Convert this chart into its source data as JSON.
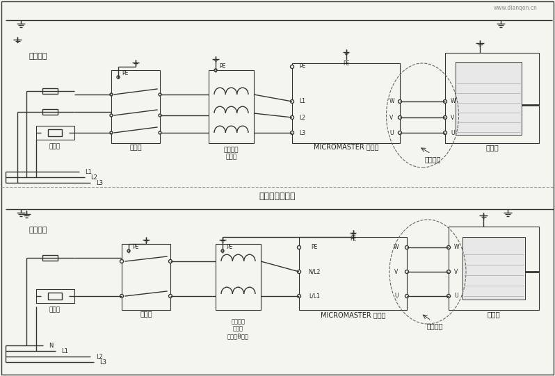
{
  "background": "#f5f5f0",
  "line_color": "#333333",
  "box_color": "#333333",
  "text_color": "#222222",
  "title": "典型的安装方法",
  "watermark": "www.dianqon.cn",
  "section1": {
    "label_power": "单相电源",
    "label_fuse": "熔断器",
    "label_contactor": "接触器",
    "label_filter": "可选件，\n滤波器\n（只限B级）",
    "label_inverter": "MICROMASTER 变频器",
    "label_shielded": "屏蔽电缆",
    "label_motor": "电动机",
    "lines_top": [
      "L3",
      "L2",
      "L1",
      "N"
    ],
    "terminals_in": [
      "L/L1",
      "N/L2",
      "PE"
    ],
    "terminals_out": [
      "U",
      "V",
      "W",
      "PE"
    ]
  },
  "section2": {
    "label_power": "三相电源",
    "label_fuse": "熔断器",
    "label_contactor": "接触器",
    "label_filter": "可选件，\n滤波器",
    "label_inverter": "MICROMASTER 变频器",
    "label_shielded": "屏蔽电缆",
    "label_motor": "电动机",
    "lines_top": [
      "L3",
      "L2",
      "L1"
    ],
    "terminals_in": [
      "L3",
      "L2",
      "L1",
      "PE"
    ],
    "terminals_out": [
      "U",
      "V",
      "W",
      "PE"
    ]
  }
}
